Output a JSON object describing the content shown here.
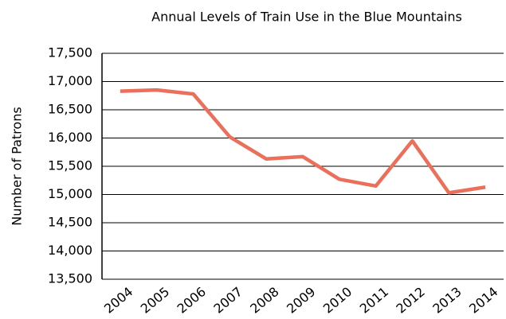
{
  "chart_data": {
    "type": "line",
    "title": "Annual Levels of Train Use in the Blue Mountains",
    "y_label": "Number of Patrons",
    "categories": [
      "2004",
      "2005",
      "2006",
      "2007",
      "2008",
      "2009",
      "2010",
      "2011",
      "2012",
      "2013",
      "2014"
    ],
    "series": [
      {
        "name": "Patrons",
        "color": "#eb6f5a",
        "values": [
          16830,
          16850,
          16780,
          16020,
          15630,
          15670,
          15270,
          15150,
          15950,
          15030,
          15130
        ]
      }
    ],
    "ylim": [
      13500,
      17500
    ],
    "yticks": [
      {
        "value": 13500,
        "label": "13,500"
      },
      {
        "value": 14000,
        "label": "14,000"
      },
      {
        "value": 14500,
        "label": "14,500"
      },
      {
        "value": 15000,
        "label": "15,000"
      },
      {
        "value": 15500,
        "label": "15,500"
      },
      {
        "value": 16000,
        "label": "16,000"
      },
      {
        "value": 16500,
        "label": "16,500"
      },
      {
        "value": 17000,
        "label": "17,000"
      },
      {
        "value": 17500,
        "label": "17,500"
      }
    ],
    "grid": true
  }
}
